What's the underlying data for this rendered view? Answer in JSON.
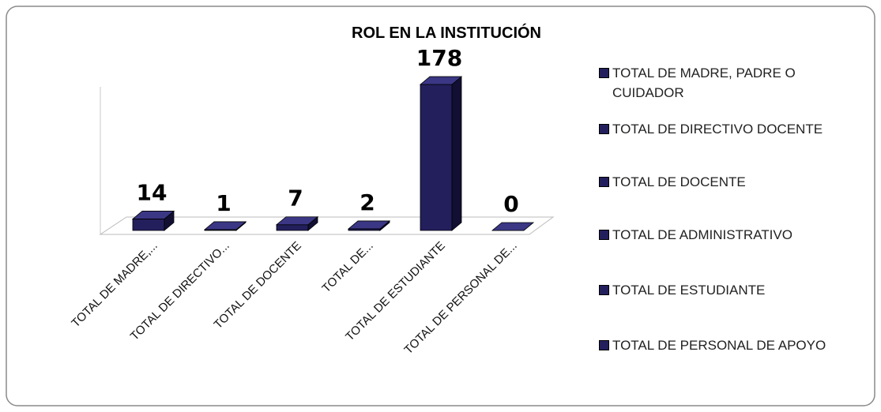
{
  "chart_data": {
    "type": "bar3d",
    "title": "ROL EN LA INSTITUCIÓN",
    "categories": [
      "TOTAL DE MADRE,...",
      "TOTAL DE DIRECTIVO...",
      "TOTAL DE DOCENTE",
      "TOTAL DE...",
      "TOTAL DE ESTUDIANTE",
      "TOTAL DE PERSONAL DE..."
    ],
    "legend": [
      "TOTAL DE MADRE, PADRE O CUIDADOR",
      "TOTAL DE DIRECTIVO DOCENTE",
      "TOTAL DE DOCENTE",
      "TOTAL DE ADMINISTRATIVO",
      "TOTAL DE ESTUDIANTE",
      "TOTAL DE PERSONAL DE APOYO"
    ],
    "values": [
      14,
      1,
      7,
      2,
      178,
      0
    ],
    "color": "#231f5c",
    "ylim": [
      0,
      180
    ]
  }
}
